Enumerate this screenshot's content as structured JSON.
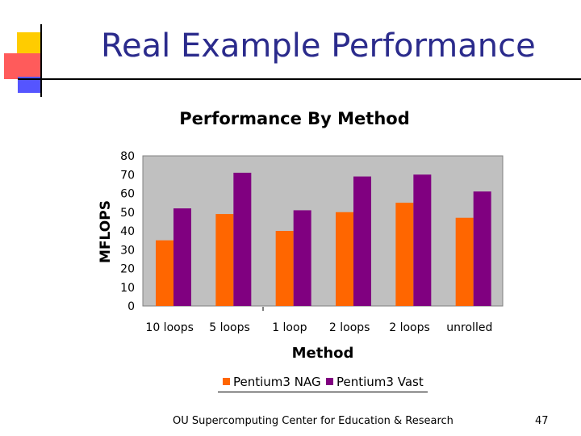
{
  "slide": {
    "title": "Real Example Performance",
    "footer": "OU Supercomputing Center for Education & Research",
    "page_number": "47"
  },
  "chart_data": {
    "type": "bar",
    "title": "Performance By Method",
    "xlabel": "Method",
    "ylabel": "MFLOPS",
    "categories": [
      "10 loops",
      "5 loops",
      "1 loop",
      "2 loops",
      "2 loops",
      "unrolled"
    ],
    "series": [
      {
        "name": "Pentium3 NAG",
        "color": "#ff6600",
        "values": [
          35,
          49,
          40,
          50,
          55,
          47
        ]
      },
      {
        "name": "Pentium3 Vast",
        "color": "#800080",
        "values": [
          52,
          71,
          51,
          69,
          70,
          61
        ]
      }
    ],
    "ylim": [
      0,
      80
    ],
    "yticks": [
      "0",
      "10",
      "20",
      "30",
      "40",
      "50",
      "60",
      "70",
      "80"
    ],
    "plot_background": "#c0c0c0",
    "grid": false,
    "legend_position": "bottom"
  }
}
